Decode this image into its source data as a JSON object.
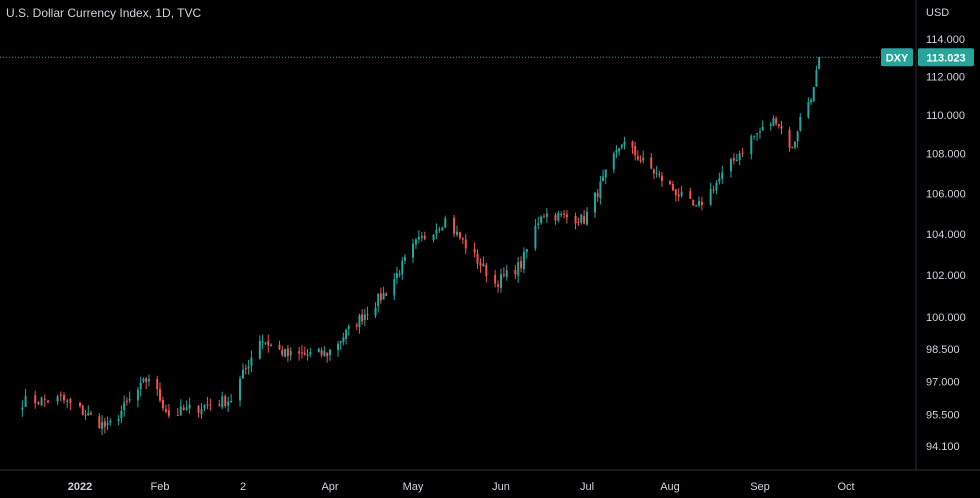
{
  "header": {
    "title": "U.S. Dollar Currency Index, 1D, TVC"
  },
  "currency": "USD",
  "colors": {
    "background": "#000000",
    "up": "#26a69a",
    "down": "#ef5350",
    "axis_text": "#d1d4dc",
    "axis_line": "#2a2e39",
    "price_line": "#26a69a",
    "badge_text": "#ffffff"
  },
  "chart_data": {
    "type": "candlestick",
    "symbol": "DXY",
    "last_price": 113.023,
    "last_price_label": "113.023",
    "y_ticks": [
      {
        "value": 94.1,
        "label": "94.100"
      },
      {
        "value": 95.5,
        "label": "95.500"
      },
      {
        "value": 97.0,
        "label": "97.000"
      },
      {
        "value": 98.5,
        "label": "98.500"
      },
      {
        "value": 100.0,
        "label": "100.000"
      },
      {
        "value": 102.0,
        "label": "102.000"
      },
      {
        "value": 104.0,
        "label": "104.000"
      },
      {
        "value": 106.0,
        "label": "106.000"
      },
      {
        "value": 108.0,
        "label": "108.000"
      },
      {
        "value": 110.0,
        "label": "110.000"
      },
      {
        "value": 112.0,
        "label": "112.000"
      },
      {
        "value": 114.0,
        "label": "114.000"
      }
    ],
    "x_ticks": [
      {
        "date": "2022-01-03",
        "label": "2022"
      },
      {
        "date": "2022-02-01",
        "label": "Feb"
      },
      {
        "date": "2022-03-01",
        "label": "2"
      },
      {
        "date": "2022-04-01",
        "label": "Apr"
      },
      {
        "date": "2022-05-02",
        "label": "May"
      },
      {
        "date": "2022-06-01",
        "label": "Jun"
      },
      {
        "date": "2022-07-01",
        "label": "Jul"
      },
      {
        "date": "2022-08-01",
        "label": "Aug"
      },
      {
        "date": "2022-09-01",
        "label": "Sep"
      },
      {
        "date": "2022-10-03",
        "label": "Oct"
      }
    ],
    "x_range": [
      "2021-12-16",
      "2022-10-14"
    ],
    "log_scale": true,
    "grid": false,
    "close_anchors": [
      {
        "date": "2021-12-16",
        "close": 96.1
      },
      {
        "date": "2021-12-28",
        "close": 96.2
      },
      {
        "date": "2022-01-13",
        "close": 94.9
      },
      {
        "date": "2022-01-28",
        "close": 97.2
      },
      {
        "date": "2022-02-04",
        "close": 95.5
      },
      {
        "date": "2022-02-25",
        "close": 96.2
      },
      {
        "date": "2022-03-07",
        "close": 99.0
      },
      {
        "date": "2022-03-17",
        "close": 98.2
      },
      {
        "date": "2022-03-31",
        "close": 98.3
      },
      {
        "date": "2022-04-12",
        "close": 99.9
      },
      {
        "date": "2022-04-22",
        "close": 101.2
      },
      {
        "date": "2022-05-03",
        "close": 103.5
      },
      {
        "date": "2022-05-13",
        "close": 104.7
      },
      {
        "date": "2022-05-30",
        "close": 101.6
      },
      {
        "date": "2022-06-08",
        "close": 102.5
      },
      {
        "date": "2022-06-15",
        "close": 105.0
      },
      {
        "date": "2022-06-30",
        "close": 104.7
      },
      {
        "date": "2022-07-14",
        "close": 108.6
      },
      {
        "date": "2022-08-02",
        "close": 106.2
      },
      {
        "date": "2022-08-10",
        "close": 105.2
      },
      {
        "date": "2022-08-29",
        "close": 108.8
      },
      {
        "date": "2022-09-07",
        "close": 109.8
      },
      {
        "date": "2022-09-13",
        "close": 108.2
      },
      {
        "date": "2022-09-16",
        "close": 109.8
      },
      {
        "date": "2022-09-21",
        "close": 111.3
      },
      {
        "date": "2022-09-23",
        "close": 113.023
      }
    ]
  }
}
